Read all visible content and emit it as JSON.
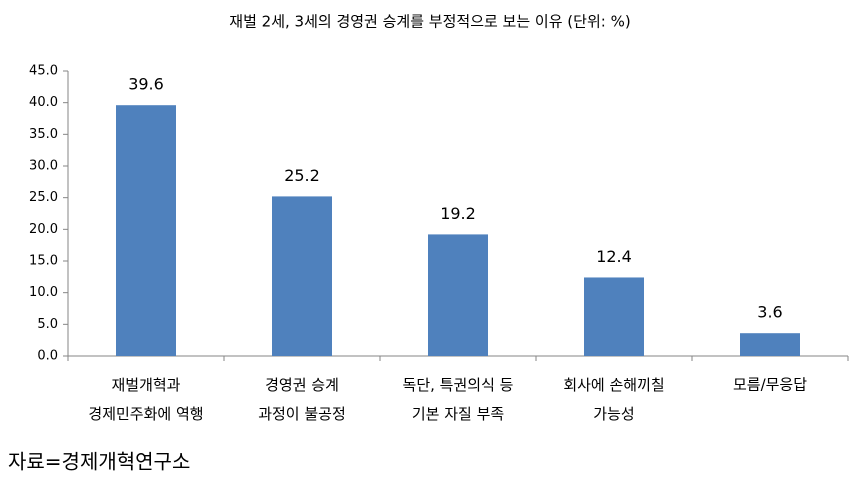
{
  "chart_data": {
    "type": "bar",
    "title": "재벌 2세, 3세의 경영권 승계를 부정적으로 보는 이유 (단위: %)",
    "categories": [
      "재벌개혁과\n경제민주화에 역행",
      "경영권 승계\n과정이 불공정",
      "독단, 특권의식 등\n기본 자질 부족",
      "회사에 손해끼칠\n가능성",
      "모름/무응답"
    ],
    "values": [
      39.6,
      25.2,
      19.2,
      12.4,
      3.6
    ],
    "color": "#4f81bd",
    "ylim": [
      0,
      45
    ],
    "yticks": [
      {
        "value": 0,
        "label": "0.0"
      },
      {
        "value": 5,
        "label": "5.0"
      },
      {
        "value": 10,
        "label": "10.0"
      },
      {
        "value": 15,
        "label": "15.0"
      },
      {
        "value": 20,
        "label": "20.0"
      },
      {
        "value": 25,
        "label": "25.0"
      },
      {
        "value": 30,
        "label": "30.0"
      },
      {
        "value": 35,
        "label": "35.0"
      },
      {
        "value": 40,
        "label": "40.0"
      },
      {
        "value": 45,
        "label": "45.0"
      }
    ],
    "grid": false,
    "source": "자료=경제개혁연구소"
  }
}
